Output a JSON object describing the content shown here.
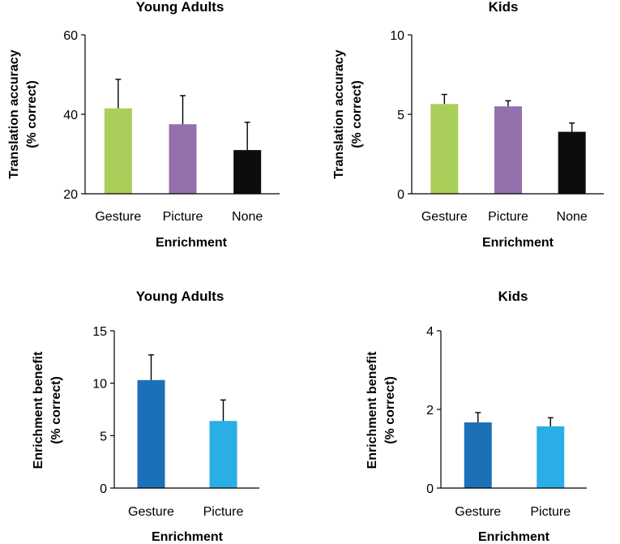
{
  "chart_data": [
    {
      "type": "bar",
      "title": "Young Adults",
      "categories": [
        "Gesture",
        "Picture",
        "None"
      ],
      "values": [
        41.5,
        37.5,
        31
      ],
      "errors": [
        7.3,
        7.2,
        7
      ],
      "colors": [
        "#a9cf5a",
        "#9470ad",
        "#0d0d0d"
      ],
      "xlabel": "Enrichment",
      "ylabel": [
        "Translation accuracy",
        "(% correct)"
      ],
      "ylim": [
        20,
        60
      ],
      "yticks": [
        20,
        40,
        60
      ],
      "ytick_labels": [
        "20",
        "40",
        "60"
      ]
    },
    {
      "type": "bar",
      "title": "Kids",
      "categories": [
        "Gesture",
        "Picture",
        "None"
      ],
      "values": [
        5.65,
        5.5,
        3.9
      ],
      "errors": [
        0.6,
        0.35,
        0.55
      ],
      "colors": [
        "#a9cf5a",
        "#9470ad",
        "#0d0d0d"
      ],
      "xlabel": "Enrichment",
      "ylabel": [
        "Translation accuracy",
        "(% correct)"
      ],
      "ylim": [
        0,
        10
      ],
      "yticks": [
        0,
        5,
        10
      ],
      "ytick_labels": [
        "0",
        "5",
        "10"
      ]
    },
    {
      "type": "bar",
      "title": "Young Adults",
      "categories": [
        "Gesture",
        "Picture"
      ],
      "values": [
        10.3,
        6.4
      ],
      "errors": [
        2.4,
        2.0
      ],
      "colors": [
        "#1c70b8",
        "#2aaee6"
      ],
      "xlabel": "Enrichment",
      "ylabel": [
        "Enrichment benefit",
        "(% correct)"
      ],
      "ylim": [
        0,
        15
      ],
      "yticks": [
        0,
        5,
        10,
        15
      ],
      "ytick_labels": [
        "0",
        "5",
        "10",
        "15"
      ]
    },
    {
      "type": "bar",
      "title": "Kids",
      "categories": [
        "Gesture",
        "Picture"
      ],
      "values": [
        1.67,
        1.57
      ],
      "errors": [
        0.25,
        0.22
      ],
      "colors": [
        "#1c70b8",
        "#2aaee6"
      ],
      "xlabel": "Enrichment",
      "ylabel": [
        "Enrichment benefit",
        "(% correct)"
      ],
      "ylim": [
        0,
        4
      ],
      "yticks": [
        0,
        2,
        4
      ],
      "ytick_labels": [
        "0",
        "2",
        "4"
      ]
    }
  ]
}
